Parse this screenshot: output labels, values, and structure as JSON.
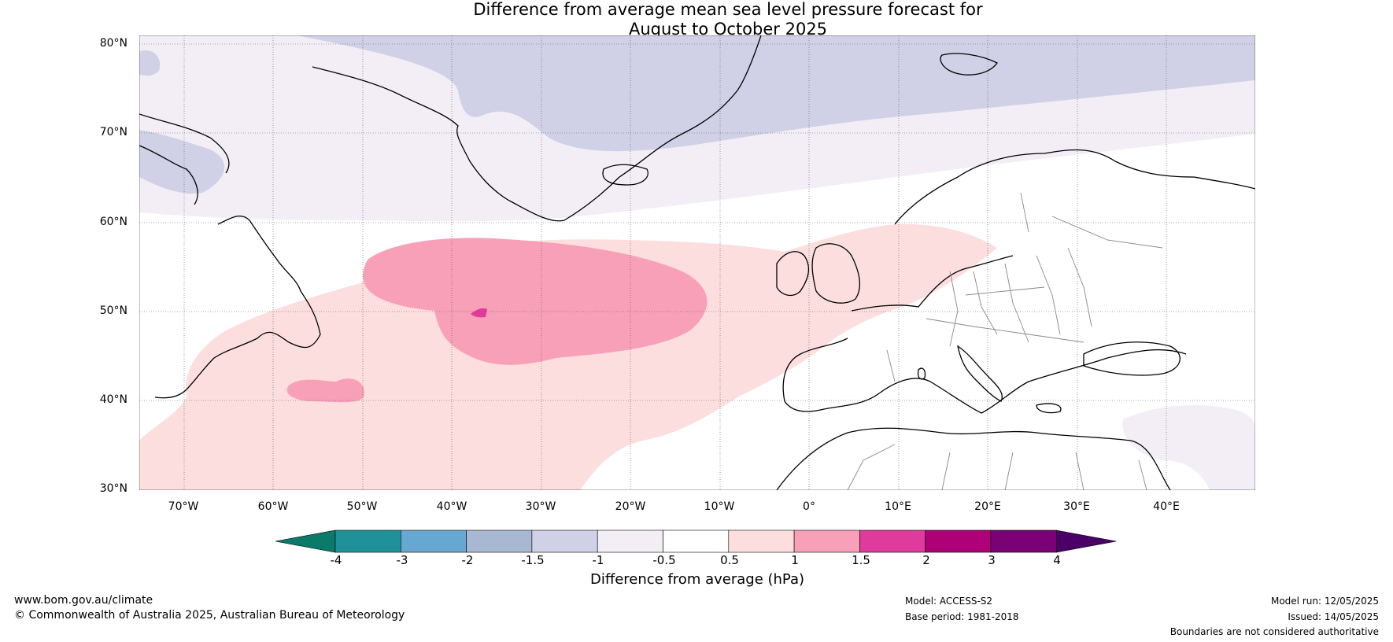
{
  "title": {
    "line1": "Difference from average mean sea level pressure forecast for",
    "line2": "August to October 2025"
  },
  "map": {
    "projection": "plate-carree",
    "lon_range": [
      -75,
      50
    ],
    "lat_range": [
      30,
      81
    ],
    "lat_ticks": [
      "80°N",
      "70°N",
      "60°N",
      "50°N",
      "40°N",
      "30°N"
    ],
    "lon_ticks": [
      "70°W",
      "60°W",
      "50°W",
      "40°W",
      "30°W",
      "20°W",
      "10°W",
      "0°",
      "10°E",
      "20°E",
      "30°E",
      "40°E"
    ],
    "features": {
      "negative_anomaly_region": "Greenland / Arctic, -1.5 to -1 hPa",
      "positive_anomaly_region": "North Atlantic, 0.5 to 1.5 hPa"
    }
  },
  "colorbar": {
    "ticks": [
      "-4",
      "-3",
      "-2",
      "-1.5",
      "-1",
      "-0.5",
      "0.5",
      "1",
      "1.5",
      "2",
      "3",
      "4"
    ],
    "colors": [
      "#1e9199",
      "#66a8d2",
      "#a8b8d3",
      "#d0d1e6",
      "#f3eef6",
      "#ffffff",
      "#fddede",
      "#f8a0b8",
      "#de3b9c",
      "#ae0178",
      "#7b0176"
    ],
    "low_extend_color": "#0a7b6b",
    "high_extend_color": "#4b0068",
    "label": "Difference from average (hPa)"
  },
  "footer": {
    "website": "www.bom.gov.au/climate",
    "copyright": "© Commonwealth of Australia 2025, Australian Bureau of Meteorology",
    "model": "Model: ACCESS-S2",
    "base_period": "Base period: 1981-2018",
    "model_run": "Model run: 12/05/2025",
    "issued": "Issued: 14/05/2025",
    "disclaimer": "Boundaries are not considered authoritative"
  }
}
